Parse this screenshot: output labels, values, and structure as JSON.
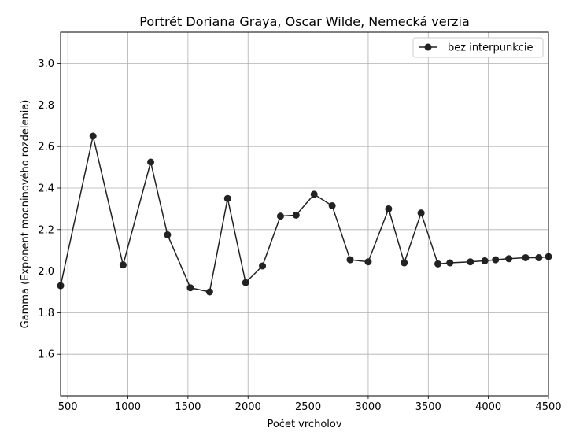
{
  "chart_data": {
    "type": "line",
    "title": "Portrét Doriana Graya, Oscar Wilde, Nemecká verzia",
    "xlabel": "Počet vrcholov",
    "ylabel": "Gamma (Exponent mocninového rozdelenia)",
    "xlim": [
      440,
      4500
    ],
    "ylim": [
      1.4,
      3.15
    ],
    "xticks": [
      500,
      1000,
      1500,
      2000,
      2500,
      3000,
      3500,
      4000,
      4500
    ],
    "yticks": [
      1.6,
      1.8,
      2.0,
      2.2,
      2.4,
      2.6,
      2.8,
      3.0
    ],
    "grid": true,
    "legend_position": "upper-right",
    "series": [
      {
        "name": "bez interpunkcie",
        "color": "#222222",
        "marker": "circle",
        "x": [
          440,
          710,
          960,
          1190,
          1330,
          1520,
          1680,
          1830,
          1980,
          2120,
          2270,
          2400,
          2550,
          2700,
          2850,
          3000,
          3170,
          3300,
          3440,
          3580,
          3680,
          3850,
          3970,
          4060,
          4170,
          4310,
          4420,
          4500
        ],
        "y": [
          1.93,
          2.65,
          2.03,
          2.525,
          2.175,
          1.92,
          1.9,
          2.35,
          1.945,
          2.025,
          2.265,
          2.27,
          2.37,
          2.315,
          2.055,
          2.045,
          2.3,
          2.04,
          2.28,
          2.035,
          2.04,
          2.045,
          2.05,
          2.055,
          2.06,
          2.065,
          2.065,
          2.07
        ]
      }
    ]
  }
}
